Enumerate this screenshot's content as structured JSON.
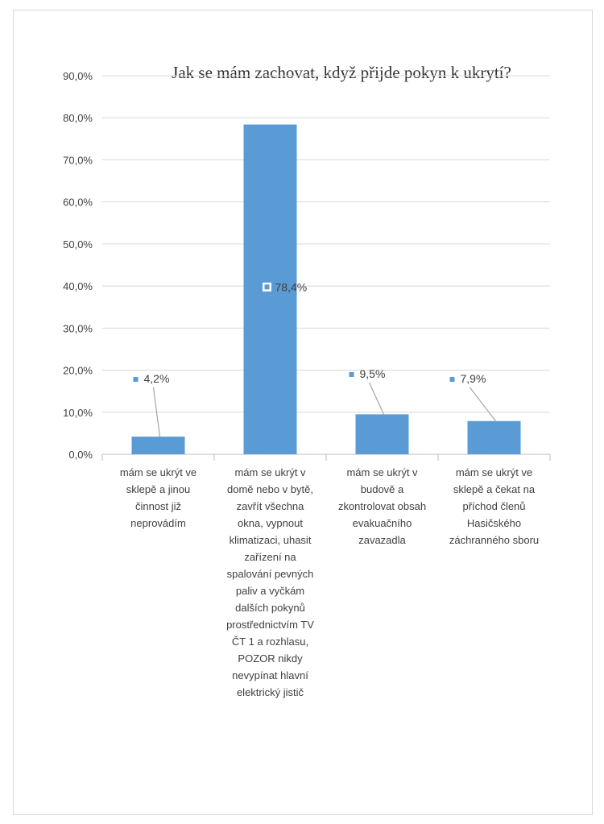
{
  "chart_data": {
    "type": "bar",
    "title": "Jak se mám zachovat, když přijde  pokyn k ukrytí?",
    "xlabel": "",
    "ylabel": "",
    "ylim": [
      0,
      90
    ],
    "y_ticks": [
      "0,0%",
      "10,0%",
      "20,0%",
      "30,0%",
      "40,0%",
      "50,0%",
      "60,0%",
      "70,0%",
      "80,0%",
      "90,0%"
    ],
    "grid": true,
    "legend": "none",
    "bar_color": "#5b9bd5",
    "categories": [
      [
        "mám se ukrýt ve",
        "sklepě a jinou",
        "činnost již",
        "neprovádím"
      ],
      [
        "mám se ukrýt v",
        "domě nebo v bytě,",
        "zavřít všechna",
        "okna, vypnout",
        "klimatizaci, uhasit",
        "zařízení na",
        "spalování pevných",
        "paliv a vyčkám",
        "dalších pokynů",
        "prostřednictvím TV",
        "ČT 1 a rozhlasu,",
        "POZOR nikdy",
        "nevypínat hlavní",
        "elektrický jistič"
      ],
      [
        "mám se ukrýt v",
        "budově a",
        "zkontrolovat obsah",
        "evakuačního",
        "zavazadla"
      ],
      [
        "mám se ukrýt ve",
        "sklepě a čekat na",
        "příchod členů",
        "Hasičského",
        "záchranného sboru"
      ]
    ],
    "values": [
      4.2,
      78.4,
      9.5,
      7.9
    ],
    "value_labels": [
      "4,2%",
      "78,4%",
      "9,5%",
      "7,9%"
    ]
  }
}
